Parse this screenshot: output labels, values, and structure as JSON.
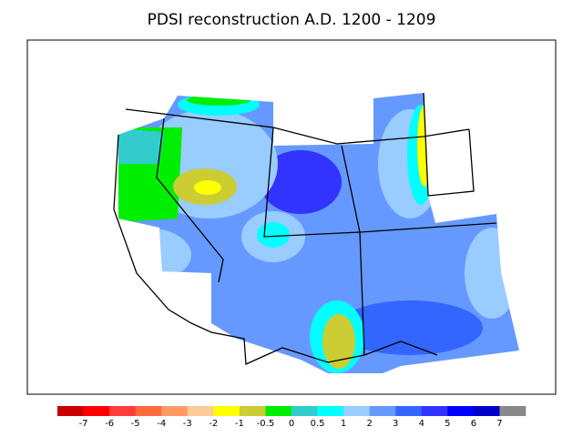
{
  "title": "PDSI reconstruction A.D. 1200 - 1209",
  "colorbar": {
    "colors": [
      "#c80000",
      "#ff0000",
      "#ff3c3c",
      "#ff6a3c",
      "#ff9966",
      "#ffcc99",
      "#ffff00",
      "#cccc33",
      "#00ee00",
      "#33cccc",
      "#00ffff",
      "#99ccff",
      "#6699ff",
      "#3366ff",
      "#3333ff",
      "#0000ff",
      "#0000c8",
      "#888888"
    ],
    "labels": [
      -7,
      -6,
      -5,
      -4,
      -3,
      -2,
      -1,
      -0.5,
      0,
      0.5,
      1,
      2,
      3,
      4,
      5,
      6,
      7
    ]
  }
}
